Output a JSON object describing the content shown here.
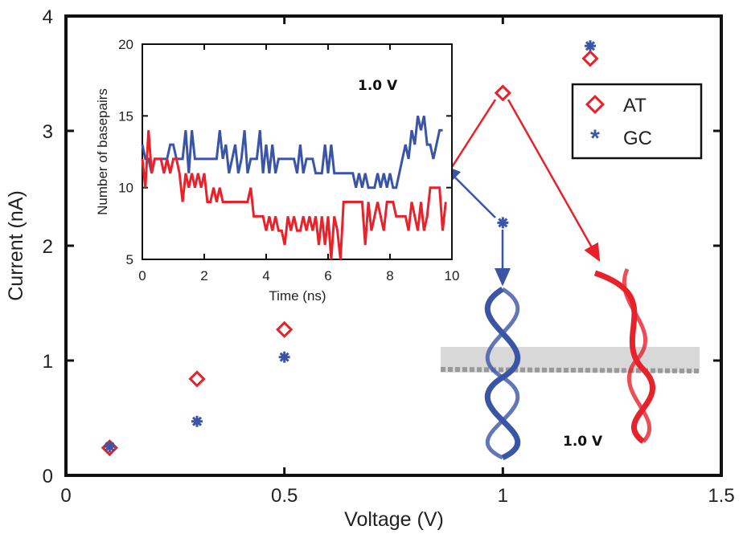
{
  "colors": {
    "AT": "#e8222a",
    "GC": "#3a55a6"
  },
  "chart_data": [
    {
      "type": "scatter",
      "title": "",
      "xlabel": "Voltage (V)",
      "ylabel": "Current (nA)",
      "xlim": [
        0,
        1.5
      ],
      "ylim": [
        0,
        4
      ],
      "xticks": [
        "0",
        "0.5",
        "1",
        "1.5"
      ],
      "yticks": [
        "0",
        "1",
        "2",
        "3",
        "4"
      ],
      "legend_position": "top-right",
      "series": [
        {
          "name": "AT",
          "marker": "diamond",
          "x": [
            0.1,
            0.3,
            0.5,
            1.0,
            1.2
          ],
          "y": [
            0.24,
            0.84,
            1.27,
            3.33,
            3.63
          ]
        },
        {
          "name": "GC",
          "marker": "asterisk",
          "x": [
            0.1,
            0.3,
            0.5,
            1.0,
            1.2
          ],
          "y": [
            0.25,
            0.47,
            1.03,
            2.2,
            3.74
          ]
        }
      ],
      "annotation": "1.0 V"
    },
    {
      "type": "line",
      "title": "",
      "xlabel": "Time (ns)",
      "ylabel": "Number of basepairs",
      "xlim": [
        0,
        10
      ],
      "ylim": [
        5,
        20
      ],
      "xticks": [
        "0",
        "2",
        "4",
        "6",
        "8",
        "10"
      ],
      "yticks": [
        "5",
        "10",
        "15",
        "20"
      ],
      "annotation": "1.0 V",
      "dt": 0.1,
      "series": [
        {
          "name": "GC",
          "values": [
            13,
            12,
            12,
            11,
            12,
            12,
            12,
            12,
            12,
            13,
            13,
            12,
            12,
            12,
            14,
            11,
            14,
            12,
            12,
            12,
            12,
            12,
            12,
            12,
            12,
            14,
            12,
            13,
            11,
            12,
            13,
            11,
            12,
            14,
            11,
            12,
            12,
            12,
            14,
            11,
            13,
            11,
            13,
            11,
            12,
            12,
            12,
            12,
            12,
            12,
            11,
            13,
            11,
            12,
            12,
            12,
            11,
            11,
            11,
            13,
            11,
            13,
            11,
            11,
            11,
            11,
            11,
            11,
            11,
            10,
            11,
            10,
            11,
            10,
            10,
            10,
            11,
            10,
            11,
            10,
            11,
            10,
            10,
            11,
            12,
            13,
            12,
            14,
            13,
            15,
            14,
            15,
            13,
            13,
            12,
            13,
            14,
            14
          ]
        },
        {
          "name": "AT",
          "values": [
            12,
            10,
            14,
            11,
            12,
            12,
            12,
            11,
            12,
            11,
            12,
            12,
            11,
            9,
            11,
            10,
            11,
            10,
            11,
            10,
            11,
            9,
            9,
            10,
            9,
            10,
            9,
            9,
            9,
            9,
            9,
            9,
            9,
            9,
            9,
            10,
            8,
            8,
            8,
            8,
            7,
            8,
            7,
            8,
            7,
            7,
            6,
            8,
            7,
            8,
            7,
            7,
            8,
            7,
            8,
            7,
            8,
            6,
            8,
            6,
            8,
            5,
            8,
            7,
            5,
            9,
            9,
            9,
            9,
            9,
            9,
            9,
            6,
            9,
            7,
            8,
            9,
            8,
            7,
            9,
            9,
            9,
            8,
            8,
            8,
            8,
            7,
            9,
            8,
            7,
            9,
            7,
            8,
            10,
            10,
            10,
            10,
            7,
            9
          ]
        }
      ]
    }
  ]
}
